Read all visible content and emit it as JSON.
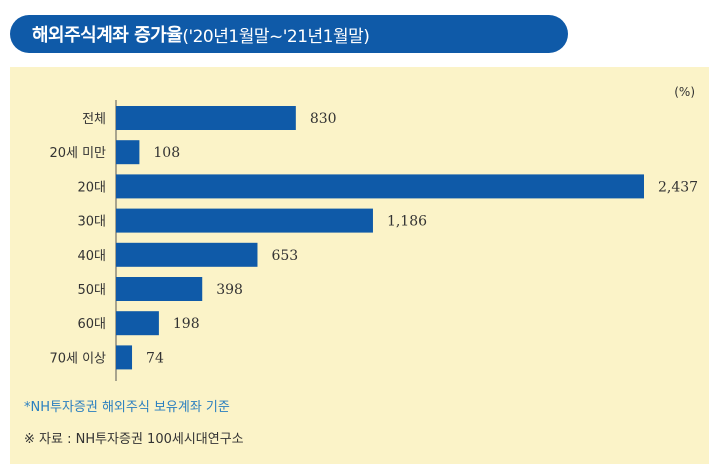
{
  "header": {
    "title": "해외주식계좌 증가율",
    "period": "('20년1월말~'21년1월말)"
  },
  "chart_data": {
    "type": "bar",
    "orientation": "horizontal",
    "title": "해외주식계좌 증가율('20년1월말~'21년1월말)",
    "unit": "(%)",
    "categories": [
      "전체",
      "20세 미만",
      "20대",
      "30대",
      "40대",
      "50대",
      "60대",
      "70세 이상"
    ],
    "values": [
      830,
      108,
      2437,
      1186,
      653,
      398,
      198,
      74
    ],
    "value_labels": [
      "830",
      "108",
      "2,437",
      "1,186",
      "653",
      "398",
      "198",
      "74"
    ],
    "bar_color": "#0f5aa8",
    "grid": false
  },
  "notes": {
    "footnote": "*NH투자증권 해외주식 보유계좌 기준",
    "source": "※ 자료 : NH투자증권 100세시대연구소"
  }
}
